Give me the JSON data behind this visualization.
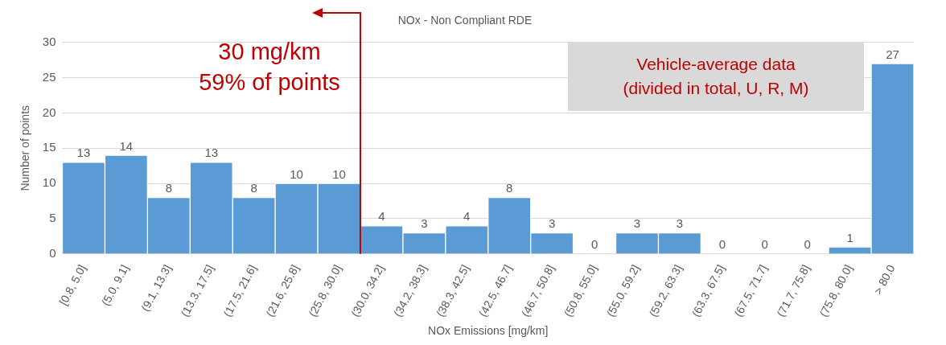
{
  "chart_data": {
    "type": "bar",
    "title": "NOx - Non Compliant RDE",
    "xlabel": "NOx Emissions [mg/km]",
    "ylabel": "Number of points",
    "categories": [
      "[0.8, 5.0]",
      "(5.0, 9.1]",
      "(9.1, 13.3]",
      "(13.3, 17.5]",
      "(17.5, 21.6]",
      "(21.6, 25.8]",
      "(25.8, 30.0]",
      "(30.0, 34.2]",
      "(34.2, 38.3]",
      "(38.3, 42.5]",
      "(42.5, 46.7]",
      "(46.7, 50.8]",
      "(50.8, 55.0]",
      "(55.0, 59.2]",
      "(59.2, 63.3]",
      "(63.3, 67.5]",
      "(67.5, 71.7]",
      "(71.7, 75.8]",
      "(75.8, 80.0]",
      "> 80.0"
    ],
    "values": [
      13,
      14,
      8,
      13,
      8,
      10,
      10,
      4,
      3,
      4,
      8,
      3,
      0,
      3,
      3,
      0,
      0,
      0,
      1,
      27
    ],
    "color": "#5b9bd5",
    "ylim": [
      0,
      30
    ],
    "yticks": [
      0,
      5,
      10,
      15,
      20,
      25,
      30
    ],
    "grid": "y",
    "data_labels": true,
    "annotations": [
      "30 mg/km",
      "59% of points",
      "Vehicle-average data",
      "(divided in total, U, R, M)"
    ]
  }
}
